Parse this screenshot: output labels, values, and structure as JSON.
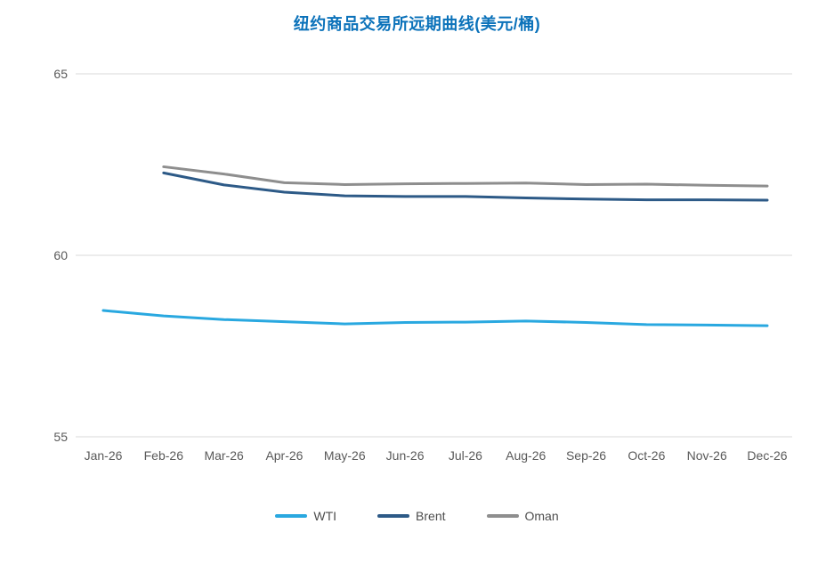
{
  "title": "纽约商品交易所远期曲线(美元/桶)",
  "colors": {
    "title": "#0b72ba",
    "grid": "#d9d9d9",
    "tick_text": "#595959",
    "legend_text": "#4d4d4d",
    "background": "#ffffff"
  },
  "chart_data": {
    "type": "line",
    "title": "纽约商品交易所远期曲线(美元/桶)",
    "categories": [
      "Jan-26",
      "Feb-26",
      "Mar-26",
      "Apr-26",
      "May-26",
      "Jun-26",
      "Jul-26",
      "Aug-26",
      "Sep-26",
      "Oct-26",
      "Nov-26",
      "Dec-26"
    ],
    "xlabel": "",
    "ylabel": "",
    "ylim": [
      55,
      65
    ],
    "yticks": [
      55,
      60,
      65
    ],
    "grid": true,
    "legend_position": "bottom",
    "series": [
      {
        "name": "WTI",
        "color": "#29a8e0",
        "values": [
          58.48,
          58.33,
          58.23,
          58.17,
          58.11,
          58.15,
          58.16,
          58.19,
          58.15,
          58.09,
          58.08,
          58.06
        ]
      },
      {
        "name": "Brent",
        "color": "#2d5a87",
        "values": [
          null,
          62.27,
          61.94,
          61.74,
          61.64,
          61.62,
          61.62,
          61.58,
          61.55,
          61.53,
          61.53,
          61.52
        ]
      },
      {
        "name": "Oman",
        "color": "#8e8e8e",
        "values": [
          null,
          62.44,
          62.24,
          62.0,
          61.95,
          61.97,
          61.98,
          61.99,
          61.95,
          61.96,
          61.93,
          61.91
        ]
      }
    ]
  }
}
